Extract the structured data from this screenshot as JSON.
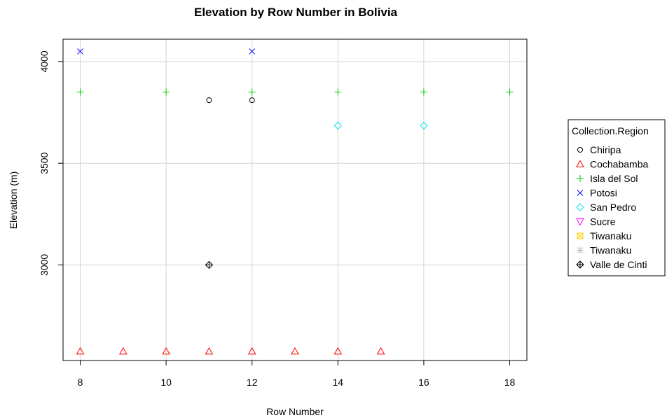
{
  "chart_data": {
    "type": "scatter",
    "title": "Elevation by Row Number in Bolivia",
    "xlabel": "Row Number",
    "ylabel": "Elevation (m)",
    "xlim": [
      7.6,
      18.4
    ],
    "ylim": [
      2530,
      4110
    ],
    "x_ticks": [
      8,
      10,
      12,
      14,
      16,
      18
    ],
    "y_ticks": [
      3000,
      3500,
      4000
    ],
    "grid": true,
    "legend": {
      "title": "Collection.Region",
      "placement": "right",
      "entries": [
        {
          "label": "Chiripa",
          "symbol": "circle",
          "color": "#000000"
        },
        {
          "label": "Cochabamba",
          "symbol": "triangle-up",
          "color": "#ff0000"
        },
        {
          "label": "Isla del Sol",
          "symbol": "plus",
          "color": "#00cc00"
        },
        {
          "label": "Potosi",
          "symbol": "cross",
          "color": "#0000ff"
        },
        {
          "label": "San Pedro",
          "symbol": "diamond",
          "color": "#00e5ee"
        },
        {
          "label": "Sucre",
          "symbol": "triangle-down",
          "color": "#ff00ff"
        },
        {
          "label": "Tiwanaku",
          "symbol": "square-cross",
          "color": "#ffcc00"
        },
        {
          "label": "Tiwanaku",
          "symbol": "asterisk",
          "color": "#bebebe"
        },
        {
          "label": "Valle de Cinti",
          "symbol": "diamond-plus",
          "color": "#000000"
        }
      ]
    },
    "series": [
      {
        "name": "Chiripa",
        "points": [
          {
            "x": 11,
            "y": 3810
          },
          {
            "x": 12,
            "y": 3810
          }
        ]
      },
      {
        "name": "Cochabamba",
        "points": [
          {
            "x": 8,
            "y": 2575
          },
          {
            "x": 9,
            "y": 2575
          },
          {
            "x": 10,
            "y": 2575
          },
          {
            "x": 11,
            "y": 2575
          },
          {
            "x": 12,
            "y": 2575
          },
          {
            "x": 13,
            "y": 2575
          },
          {
            "x": 14,
            "y": 2575
          },
          {
            "x": 15,
            "y": 2575
          }
        ]
      },
      {
        "name": "Isla del Sol",
        "points": [
          {
            "x": 8,
            "y": 3850
          },
          {
            "x": 10,
            "y": 3850
          },
          {
            "x": 12,
            "y": 3850
          },
          {
            "x": 14,
            "y": 3850
          },
          {
            "x": 16,
            "y": 3850
          },
          {
            "x": 18,
            "y": 3850
          }
        ]
      },
      {
        "name": "Potosi",
        "points": [
          {
            "x": 8,
            "y": 4050
          },
          {
            "x": 12,
            "y": 4050
          }
        ]
      },
      {
        "name": "San Pedro",
        "points": [
          {
            "x": 14,
            "y": 3685
          },
          {
            "x": 16,
            "y": 3685
          }
        ]
      },
      {
        "name": "Sucre",
        "points": []
      },
      {
        "name": "Tiwanaku",
        "points": []
      },
      {
        "name": "Tiwanaku",
        "points": []
      },
      {
        "name": "Valle de Cinti",
        "points": [
          {
            "x": 11,
            "y": 3000
          }
        ]
      }
    ]
  }
}
